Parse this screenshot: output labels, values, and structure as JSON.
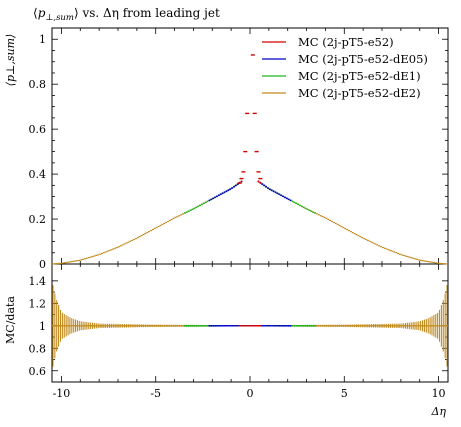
{
  "title": {
    "prefix": "⟨",
    "p": "p",
    "sub": "⊥,sum",
    "suffix": "⟩ vs. Δη from leading jet"
  },
  "main_ylabel": "⟨p⊥,sum⟩",
  "ratio_ylabel": "MC/data",
  "xlabel": "Δη",
  "legend": [
    {
      "label": "MC (2j-pT5-e52)",
      "color": "#d40000"
    },
    {
      "label": "MC (2j-pT5-e52-dE05)",
      "color": "#0000cc"
    },
    {
      "label": "MC (2j-pT5-e52-dE1)",
      "color": "#1db51d"
    },
    {
      "label": "MC (2j-pT5-e52-dE2)",
      "color": "#c08a1c"
    }
  ],
  "chart_data": [
    {
      "type": "line",
      "panel": "main",
      "title": "⟨p⊥,sum⟩ vs. Δη from leading jet",
      "ylabel": "⟨p⊥,sum⟩",
      "xlim": [
        -10.5,
        10.5
      ],
      "ylim": [
        0,
        1.05
      ],
      "x_ticks": [
        -10,
        -5,
        0,
        5,
        10
      ],
      "y_ticks": [
        0,
        0.2,
        0.4,
        0.6,
        0.8,
        1
      ],
      "y_tick_labels": [
        "0",
        "0.2",
        "0.4",
        "0.6",
        "0.8",
        "1"
      ],
      "series": [
        {
          "name": "MC (2j-pT5-e52)",
          "color": "#d40000",
          "x_range": [
            -0.6,
            0.6
          ],
          "x": [
            -0.55,
            -0.45,
            -0.35,
            -0.25,
            -0.15,
            0.15,
            0.25,
            0.35,
            0.45,
            0.55
          ],
          "y": [
            0.36,
            0.38,
            0.41,
            0.5,
            0.67,
            0.93,
            0.67,
            0.5,
            0.41,
            0.38
          ]
        },
        {
          "name": "MC (2j-pT5-e52-dE05)",
          "color": "#0000cc",
          "x_range": [
            -2.2,
            2.2
          ]
        },
        {
          "name": "MC (2j-pT5-e52-dE1)",
          "color": "#1db51d",
          "x_range": [
            -3.5,
            3.5
          ]
        },
        {
          "name": "MC (2j-pT5-e52-dE2)",
          "color": "#c08a1c",
          "x_range": [
            -10.5,
            10.5
          ]
        }
      ],
      "shape": {
        "x": [
          0.4,
          1,
          2,
          3,
          4,
          5,
          6,
          7,
          8,
          9,
          10,
          10.5
        ],
        "y": [
          0.37,
          0.335,
          0.29,
          0.245,
          0.205,
          0.16,
          0.115,
          0.075,
          0.042,
          0.017,
          0.003,
          0.0
        ]
      }
    },
    {
      "type": "line",
      "panel": "ratio",
      "ylabel": "MC/data",
      "xlabel": "Δη",
      "xlim": [
        -10.5,
        10.5
      ],
      "ylim": [
        0.5,
        1.55
      ],
      "x_ticks": [
        -10,
        -5,
        0,
        5,
        10
      ],
      "x_tick_labels": [
        "-10",
        "-5",
        "0",
        "5",
        "10"
      ],
      "y_ticks": [
        0.6,
        0.8,
        1,
        1.2,
        1.4
      ],
      "y_tick_labels": [
        "0.6",
        "0.8",
        "1",
        "1.2",
        "1.4"
      ],
      "ratio_value": 1.0,
      "band_halfwidth": {
        "x": [
          0,
          5,
          8,
          9,
          9.5,
          10,
          10.3,
          10.5
        ],
        "w": [
          0.005,
          0.01,
          0.02,
          0.04,
          0.07,
          0.12,
          0.25,
          0.4
        ]
      }
    }
  ]
}
